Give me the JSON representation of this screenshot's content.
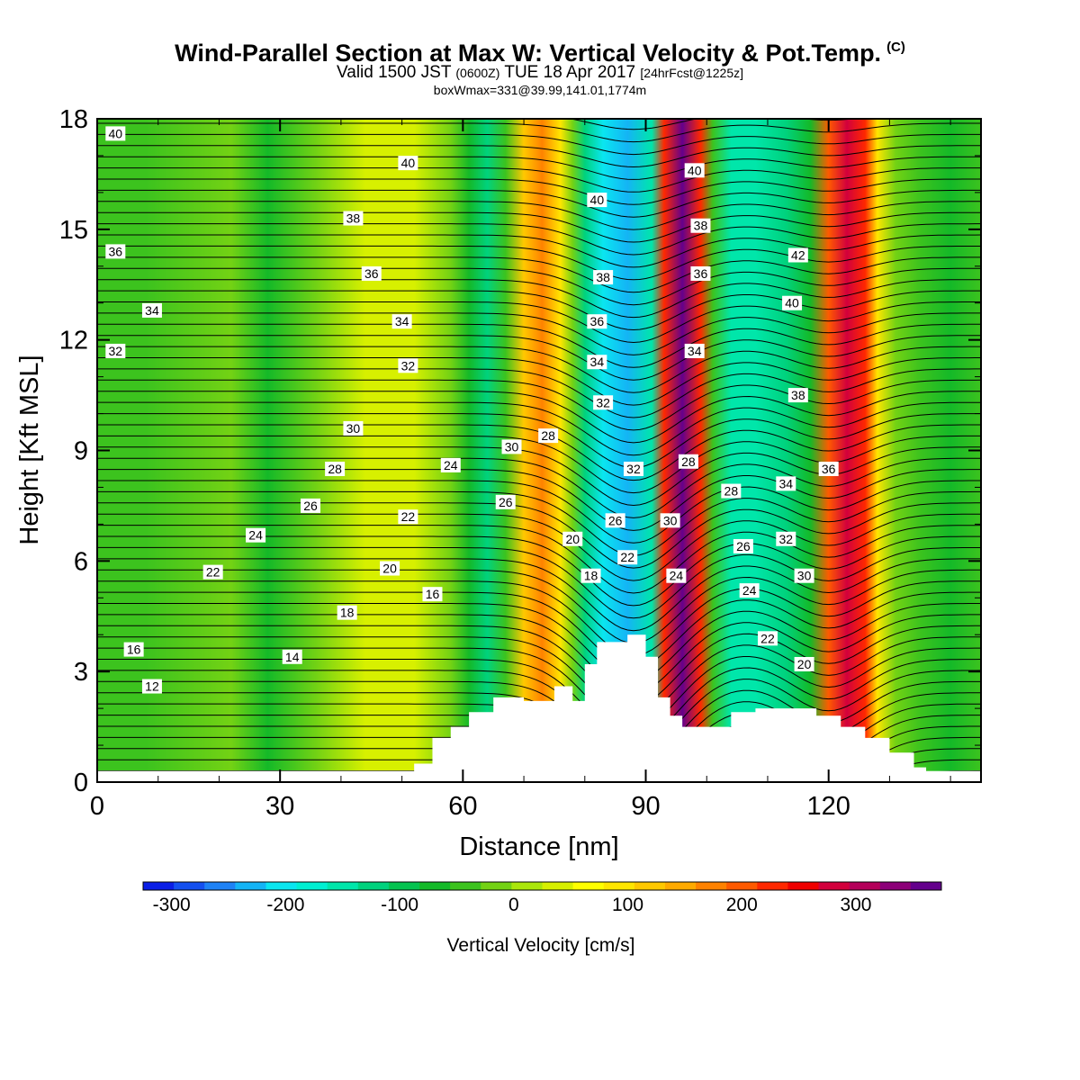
{
  "header": {
    "title": "Wind-Parallel Section at Max W: Vertical Velocity & Pot.Temp.",
    "copyright": "(C)",
    "subtitle_main": "Valid 1500 JST",
    "subtitle_utc": "(0600Z)",
    "subtitle_date": "TUE 18 Apr 2017",
    "subtitle_fcst": "[24hrFcst@1225z]",
    "info": "boxWmax=331@39.99,141.01,1774m"
  },
  "chart_data": {
    "type": "heatmap",
    "title": "Wind-Parallel Section at Max W: Vertical Velocity & Pot.Temp.",
    "xlabel": "Distance [nm]",
    "ylabel": "Height [Kft MSL]",
    "xlim": [
      0,
      145
    ],
    "ylim": [
      0,
      18
    ],
    "x_ticks": [
      0,
      30,
      60,
      90,
      120
    ],
    "y_ticks": [
      0,
      3,
      6,
      9,
      12,
      15,
      18
    ],
    "colorbar": {
      "label": "Vertical Velocity [cm/s]",
      "ticks": [
        -300,
        -200,
        -100,
        0,
        100,
        200,
        300
      ],
      "range": [
        -325,
        375
      ],
      "colors": [
        "#0a1ee6",
        "#1450f0",
        "#1e82f5",
        "#14b4f5",
        "#0ae6f0",
        "#00f0d2",
        "#00e6aa",
        "#00d27d",
        "#05c350",
        "#14b928",
        "#3cc31e",
        "#73d214",
        "#aae60a",
        "#d7f000",
        "#ffff00",
        "#ffe600",
        "#ffc800",
        "#ffaa00",
        "#ff8200",
        "#ff5a00",
        "#ff2800",
        "#f00000",
        "#d2003c",
        "#b4005a",
        "#8c0078",
        "#64008c"
      ],
      "placement": "bottom"
    },
    "vertical_velocity_bands": [
      {
        "x": 0,
        "w": -40
      },
      {
        "x": 8,
        "w": -30
      },
      {
        "x": 22,
        "w": -10
      },
      {
        "x": 28,
        "w": -70
      },
      {
        "x": 36,
        "w": -20
      },
      {
        "x": 44,
        "w": 35
      },
      {
        "x": 52,
        "w": 30
      },
      {
        "x": 58,
        "w": -20
      },
      {
        "x": 61,
        "w": -80
      },
      {
        "x": 64,
        "w": -110
      },
      {
        "x": 67,
        "w": -40
      },
      {
        "x": 70,
        "w": 120
      },
      {
        "x": 73,
        "w": 160
      },
      {
        "x": 76,
        "w": 100
      },
      {
        "x": 78,
        "w": -20
      },
      {
        "x": 80,
        "w": -130
      },
      {
        "x": 83,
        "w": -200
      },
      {
        "x": 87,
        "w": -220
      },
      {
        "x": 91,
        "w": -150
      },
      {
        "x": 93,
        "w": 240
      },
      {
        "x": 96,
        "w": 350
      },
      {
        "x": 99,
        "w": 220
      },
      {
        "x": 101,
        "w": -50
      },
      {
        "x": 104,
        "w": -140
      },
      {
        "x": 108,
        "w": -160
      },
      {
        "x": 113,
        "w": -130
      },
      {
        "x": 117,
        "w": -70
      },
      {
        "x": 120,
        "w": 200
      },
      {
        "x": 123,
        "w": 290
      },
      {
        "x": 126,
        "w": 240
      },
      {
        "x": 128,
        "w": 90
      },
      {
        "x": 131,
        "w": -20
      },
      {
        "x": 135,
        "w": -50
      },
      {
        "x": 140,
        "w": -60
      },
      {
        "x": 145,
        "w": -40
      }
    ],
    "terrain_profile": [
      [
        52,
        0.5
      ],
      [
        55,
        1.2
      ],
      [
        58,
        1.5
      ],
      [
        61,
        1.9
      ],
      [
        65,
        2.3
      ],
      [
        70,
        2.2
      ],
      [
        75,
        2.6
      ],
      [
        78,
        2.2
      ],
      [
        80,
        3.2
      ],
      [
        82,
        3.8
      ],
      [
        84,
        3.8
      ],
      [
        87,
        4.0
      ],
      [
        90,
        3.4
      ],
      [
        92,
        2.3
      ],
      [
        94,
        1.8
      ],
      [
        96,
        1.5
      ],
      [
        100,
        1.5
      ],
      [
        104,
        1.9
      ],
      [
        108,
        2.0
      ],
      [
        116,
        2.0
      ],
      [
        118,
        1.8
      ],
      [
        122,
        1.5
      ],
      [
        126,
        1.2
      ],
      [
        130,
        0.8
      ],
      [
        134,
        0.4
      ],
      [
        136,
        0.2
      ],
      [
        145,
        0.2
      ]
    ],
    "theta_labels": [
      {
        "text": "40",
        "x": 3,
        "y": 17.6
      },
      {
        "text": "40",
        "x": 51,
        "y": 16.8
      },
      {
        "text": "38",
        "x": 42,
        "y": 15.3
      },
      {
        "text": "36",
        "x": 3,
        "y": 14.4
      },
      {
        "text": "36",
        "x": 45,
        "y": 13.8
      },
      {
        "text": "34",
        "x": 9,
        "y": 12.8
      },
      {
        "text": "34",
        "x": 50,
        "y": 12.5
      },
      {
        "text": "32",
        "x": 3,
        "y": 11.7
      },
      {
        "text": "32",
        "x": 51,
        "y": 11.3
      },
      {
        "text": "30",
        "x": 42,
        "y": 9.6
      },
      {
        "text": "28",
        "x": 39,
        "y": 8.5
      },
      {
        "text": "26",
        "x": 35,
        "y": 7.5
      },
      {
        "text": "24",
        "x": 26,
        "y": 6.7
      },
      {
        "text": "22",
        "x": 19,
        "y": 5.7
      },
      {
        "text": "22",
        "x": 51,
        "y": 7.2
      },
      {
        "text": "20",
        "x": 48,
        "y": 5.8
      },
      {
        "text": "18",
        "x": 41,
        "y": 4.6
      },
      {
        "text": "16",
        "x": 55,
        "y": 5.1
      },
      {
        "text": "16",
        "x": 6,
        "y": 3.6
      },
      {
        "text": "14",
        "x": 32,
        "y": 3.4
      },
      {
        "text": "12",
        "x": 9,
        "y": 2.6
      },
      {
        "text": "24",
        "x": 58,
        "y": 8.6
      },
      {
        "text": "30",
        "x": 68,
        "y": 9.1
      },
      {
        "text": "28",
        "x": 74,
        "y": 9.4
      },
      {
        "text": "26",
        "x": 67,
        "y": 7.6
      },
      {
        "text": "20",
        "x": 78,
        "y": 6.6
      },
      {
        "text": "18",
        "x": 81,
        "y": 5.6
      },
      {
        "text": "26",
        "x": 85,
        "y": 7.1
      },
      {
        "text": "22",
        "x": 87,
        "y": 6.1
      },
      {
        "text": "32",
        "x": 88,
        "y": 8.5
      },
      {
        "text": "32",
        "x": 83,
        "y": 10.3
      },
      {
        "text": "34",
        "x": 82,
        "y": 11.4
      },
      {
        "text": "36",
        "x": 82,
        "y": 12.5
      },
      {
        "text": "38",
        "x": 83,
        "y": 13.7
      },
      {
        "text": "40",
        "x": 82,
        "y": 15.8
      },
      {
        "text": "24",
        "x": 95,
        "y": 5.6
      },
      {
        "text": "30",
        "x": 94,
        "y": 7.1
      },
      {
        "text": "28",
        "x": 97,
        "y": 8.7
      },
      {
        "text": "34",
        "x": 98,
        "y": 11.7
      },
      {
        "text": "36",
        "x": 99,
        "y": 13.8
      },
      {
        "text": "38",
        "x": 99,
        "y": 15.1
      },
      {
        "text": "40",
        "x": 98,
        "y": 16.6
      },
      {
        "text": "28",
        "x": 104,
        "y": 7.9
      },
      {
        "text": "26",
        "x": 106,
        "y": 6.4
      },
      {
        "text": "24",
        "x": 107,
        "y": 5.2
      },
      {
        "text": "22",
        "x": 110,
        "y": 3.9
      },
      {
        "text": "20",
        "x": 116,
        "y": 3.2
      },
      {
        "text": "30",
        "x": 116,
        "y": 5.6
      },
      {
        "text": "32",
        "x": 113,
        "y": 6.6
      },
      {
        "text": "34",
        "x": 113,
        "y": 8.1
      },
      {
        "text": "38",
        "x": 115,
        "y": 10.5
      },
      {
        "text": "40",
        "x": 114,
        "y": 13.0
      },
      {
        "text": "42",
        "x": 115,
        "y": 14.3
      },
      {
        "text": "36",
        "x": 120,
        "y": 8.5
      }
    ]
  }
}
